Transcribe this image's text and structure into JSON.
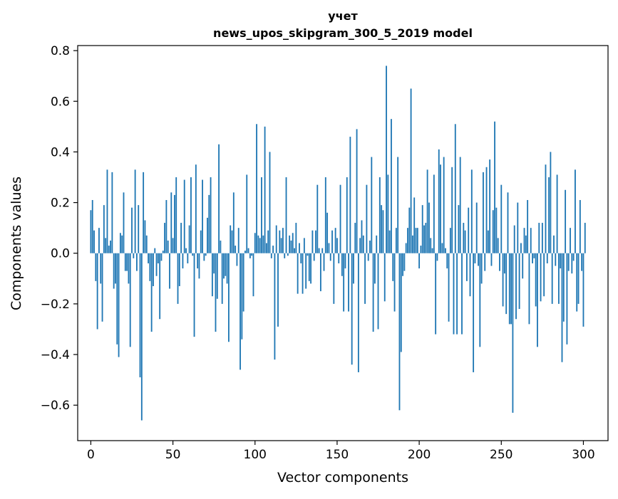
{
  "chart_data": {
    "type": "bar",
    "title_line1": "учет",
    "title_line2": "news_upos_skipgram_300_5_2019 model",
    "xlabel": "Vector components",
    "ylabel": "Components values",
    "xlim": [
      -8,
      315
    ],
    "ylim": [
      -0.74,
      0.82
    ],
    "x_ticks": [
      0,
      50,
      100,
      150,
      200,
      250,
      300
    ],
    "x_tick_labels": [
      "0",
      "50",
      "100",
      "150",
      "200",
      "250",
      "300"
    ],
    "y_ticks": [
      0.8,
      0.6,
      0.4,
      0.2,
      0.0,
      -0.2,
      -0.4,
      -0.6
    ],
    "y_tick_labels": [
      "0.8",
      "0.6",
      "0.4",
      "0.2",
      "0.0",
      "−0.2",
      "−0.4",
      "−0.6"
    ],
    "bar_color": "#1f77b4",
    "values": [
      0.17,
      0.21,
      0.09,
      -0.11,
      -0.3,
      0.1,
      -0.12,
      -0.27,
      0.19,
      0.06,
      0.33,
      0.03,
      0.05,
      0.32,
      -0.14,
      -0.12,
      -0.36,
      -0.41,
      0.08,
      0.07,
      0.24,
      -0.07,
      -0.07,
      -0.12,
      -0.37,
      0.18,
      -0.02,
      0.33,
      -0.07,
      0.19,
      -0.49,
      -0.66,
      0.32,
      0.13,
      0.07,
      -0.04,
      -0.11,
      -0.31,
      -0.13,
      0.02,
      -0.09,
      -0.04,
      -0.26,
      -0.03,
      0.01,
      0.12,
      0.21,
      0.05,
      -0.14,
      0.24,
      0.06,
      0.23,
      0.3,
      -0.2,
      -0.13,
      0.12,
      -0.06,
      0.29,
      0.02,
      -0.04,
      0.11,
      0.3,
      -0.01,
      -0.33,
      0.35,
      -0.06,
      -0.1,
      0.09,
      0.29,
      -0.03,
      -0.01,
      0.14,
      0.23,
      0.3,
      -0.17,
      -0.08,
      -0.31,
      -0.18,
      0.43,
      0.05,
      -0.2,
      -0.1,
      -0.09,
      -0.12,
      -0.35,
      0.11,
      0.09,
      0.24,
      0.03,
      -0.05,
      0.1,
      -0.46,
      -0.34,
      -0.23,
      0.01,
      0.31,
      0.02,
      -0.02,
      -0.01,
      -0.17,
      0.08,
      0.51,
      0.07,
      0.06,
      0.3,
      0.07,
      0.5,
      0.04,
      0.09,
      0.4,
      -0.02,
      0.03,
      -0.42,
      0.11,
      -0.29,
      0.09,
      0.06,
      0.1,
      -0.02,
      0.3,
      -0.01,
      0.07,
      0.05,
      0.08,
      0.02,
      0.12,
      -0.16,
      0.04,
      -0.04,
      -0.16,
      0.06,
      -0.14,
      -0.01,
      -0.11,
      -0.12,
      0.09,
      -0.03,
      0.09,
      0.27,
      0.02,
      -0.15,
      0.02,
      -0.07,
      0.3,
      0.16,
      0.04,
      -0.03,
      0.09,
      -0.2,
      0.1,
      0.06,
      -0.04,
      0.27,
      -0.09,
      -0.23,
      -0.06,
      0.3,
      -0.23,
      0.46,
      -0.44,
      -0.12,
      0.12,
      0.49,
      -0.47,
      0.06,
      0.13,
      0.07,
      -0.2,
      0.27,
      -0.03,
      0.05,
      0.38,
      -0.31,
      -0.12,
      0.07,
      -0.3,
      0.3,
      0.19,
      0.17,
      -0.19,
      0.74,
      0.31,
      0.09,
      0.53,
      -0.11,
      -0.23,
      0.1,
      0.38,
      -0.62,
      -0.39,
      -0.09,
      -0.07,
      0.04,
      0.1,
      0.18,
      0.65,
      0.07,
      0.22,
      0.1,
      0.1,
      -0.06,
      0.03,
      0.19,
      0.11,
      0.12,
      0.33,
      0.2,
      0.06,
      0.02,
      0.31,
      -0.32,
      -0.03,
      0.41,
      0.35,
      0.04,
      0.38,
      0.02,
      -0.06,
      -0.27,
      0.1,
      0.34,
      -0.32,
      0.51,
      -0.32,
      0.19,
      0.38,
      -0.32,
      0.12,
      0.09,
      -0.11,
      0.18,
      -0.17,
      0.33,
      -0.47,
      -0.04,
      0.2,
      -0.05,
      -0.37,
      -0.12,
      0.32,
      -0.07,
      0.34,
      0.09,
      0.37,
      -0.05,
      0.17,
      0.52,
      0.18,
      0.06,
      -0.07,
      0.27,
      -0.21,
      -0.08,
      -0.24,
      0.24,
      -0.28,
      -0.28,
      -0.63,
      0.11,
      -0.26,
      0.2,
      -0.22,
      0.04,
      -0.1,
      0.1,
      0.07,
      0.21,
      -0.28,
      0.1,
      -0.04,
      -0.02,
      -0.21,
      -0.37,
      0.12,
      -0.19,
      0.12,
      -0.17,
      0.35,
      -0.04,
      0.3,
      0.4,
      -0.2,
      0.07,
      -0.05,
      0.31,
      -0.2,
      -0.06,
      -0.43,
      -0.27,
      0.25,
      -0.36,
      -0.07,
      0.1,
      -0.08,
      -0.03,
      0.33,
      -0.23,
      -0.2,
      0.21,
      -0.07,
      -0.29,
      0.12
    ]
  }
}
